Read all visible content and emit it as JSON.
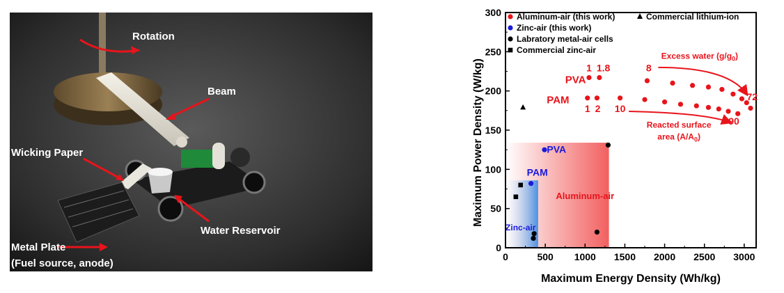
{
  "photo": {
    "labels": {
      "rotation": "Rotation",
      "beam": "Beam",
      "wicking_paper": "Wicking Paper",
      "water_reservoir": "Water Reservoir",
      "metal_plate_line1": "Metal Plate",
      "metal_plate_line2": "(Fuel source, anode)"
    }
  },
  "chart_data": {
    "type": "scatter",
    "xlabel": "Maximum Energy Density (Wh/kg)",
    "ylabel": "Maximum Power Density (W/kg)",
    "xlim": [
      0,
      3150
    ],
    "ylim": [
      0,
      300
    ],
    "xticks": [
      "0",
      "500",
      "1000",
      "1500",
      "2000",
      "2500",
      "3000"
    ],
    "yticks": [
      "0",
      "50",
      "100",
      "150",
      "200",
      "250",
      "300"
    ],
    "legend_position": "top-left",
    "legend": {
      "aluminum_air": "Aluminum-air (this work)",
      "zinc_air": "Zinc-air (this work)",
      "lab_metal_air": "Labratory metal-air cells",
      "commercial_zinc_air": "Commercial zinc-air",
      "commercial_li_ion": "Commercial lithium-ion"
    },
    "series": [
      {
        "name": "Aluminum-air (this work)",
        "color": "#e8141b",
        "marker": "circle",
        "points": [
          [
            1030,
            191
          ],
          [
            1150,
            191
          ],
          [
            1440,
            191
          ],
          [
            1050,
            217
          ],
          [
            1180,
            217
          ],
          [
            1780,
            213
          ],
          [
            2100,
            210
          ],
          [
            2350,
            207
          ],
          [
            2550,
            205
          ],
          [
            2720,
            202
          ],
          [
            2860,
            196
          ],
          [
            2970,
            190
          ],
          [
            3030,
            185
          ],
          [
            1750,
            189
          ],
          [
            2000,
            186
          ],
          [
            2200,
            183
          ],
          [
            2400,
            181
          ],
          [
            2550,
            179
          ],
          [
            2680,
            177
          ],
          [
            2800,
            174
          ],
          [
            2920,
            171
          ],
          [
            3080,
            178
          ]
        ]
      },
      {
        "name": "Zinc-air (this work)",
        "color": "#1a1adb",
        "marker": "circle",
        "points": [
          [
            490,
            125
          ],
          [
            320,
            82
          ]
        ]
      },
      {
        "name": "Labratory metal-air cells",
        "color": "#000000",
        "marker": "circle",
        "points": [
          [
            1290,
            131
          ],
          [
            1150,
            20
          ],
          [
            360,
            18
          ],
          [
            350,
            12
          ]
        ]
      },
      {
        "name": "Commercial zinc-air",
        "color": "#000000",
        "marker": "square",
        "points": [
          [
            130,
            65
          ],
          [
            190,
            80
          ]
        ]
      },
      {
        "name": "Commercial lithium-ion",
        "color": "#000000",
        "marker": "triangle",
        "points": [
          [
            220,
            179
          ]
        ]
      }
    ],
    "regions": [
      {
        "label": "Aluminum-air",
        "x": [
          0,
          1300
        ],
        "y": [
          0,
          134
        ],
        "color": "#f26060"
      },
      {
        "label": "Zinc-air",
        "x": [
          0,
          410
        ],
        "y": [
          0,
          86
        ],
        "color": "#4a90e2"
      }
    ],
    "annotations": {
      "pva_al": "PVA",
      "pam_al": "PAM",
      "pva_zn": "PVA",
      "pam_zn": "PAM",
      "num_pva_1": "1",
      "num_pva_18": "1.8",
      "num_8": "8",
      "num_pam_1": "1",
      "num_pam_2": "2",
      "num_10": "10",
      "num_72": "72",
      "num_90": "90",
      "excess_water": "Excess water (g/g",
      "excess_water_sub": "0",
      "excess_water_end": ")",
      "reacted_line1": "Reacted surface",
      "reacted_line2": "area (A/A",
      "reacted_sub": "0",
      "reacted_end": ")"
    }
  }
}
